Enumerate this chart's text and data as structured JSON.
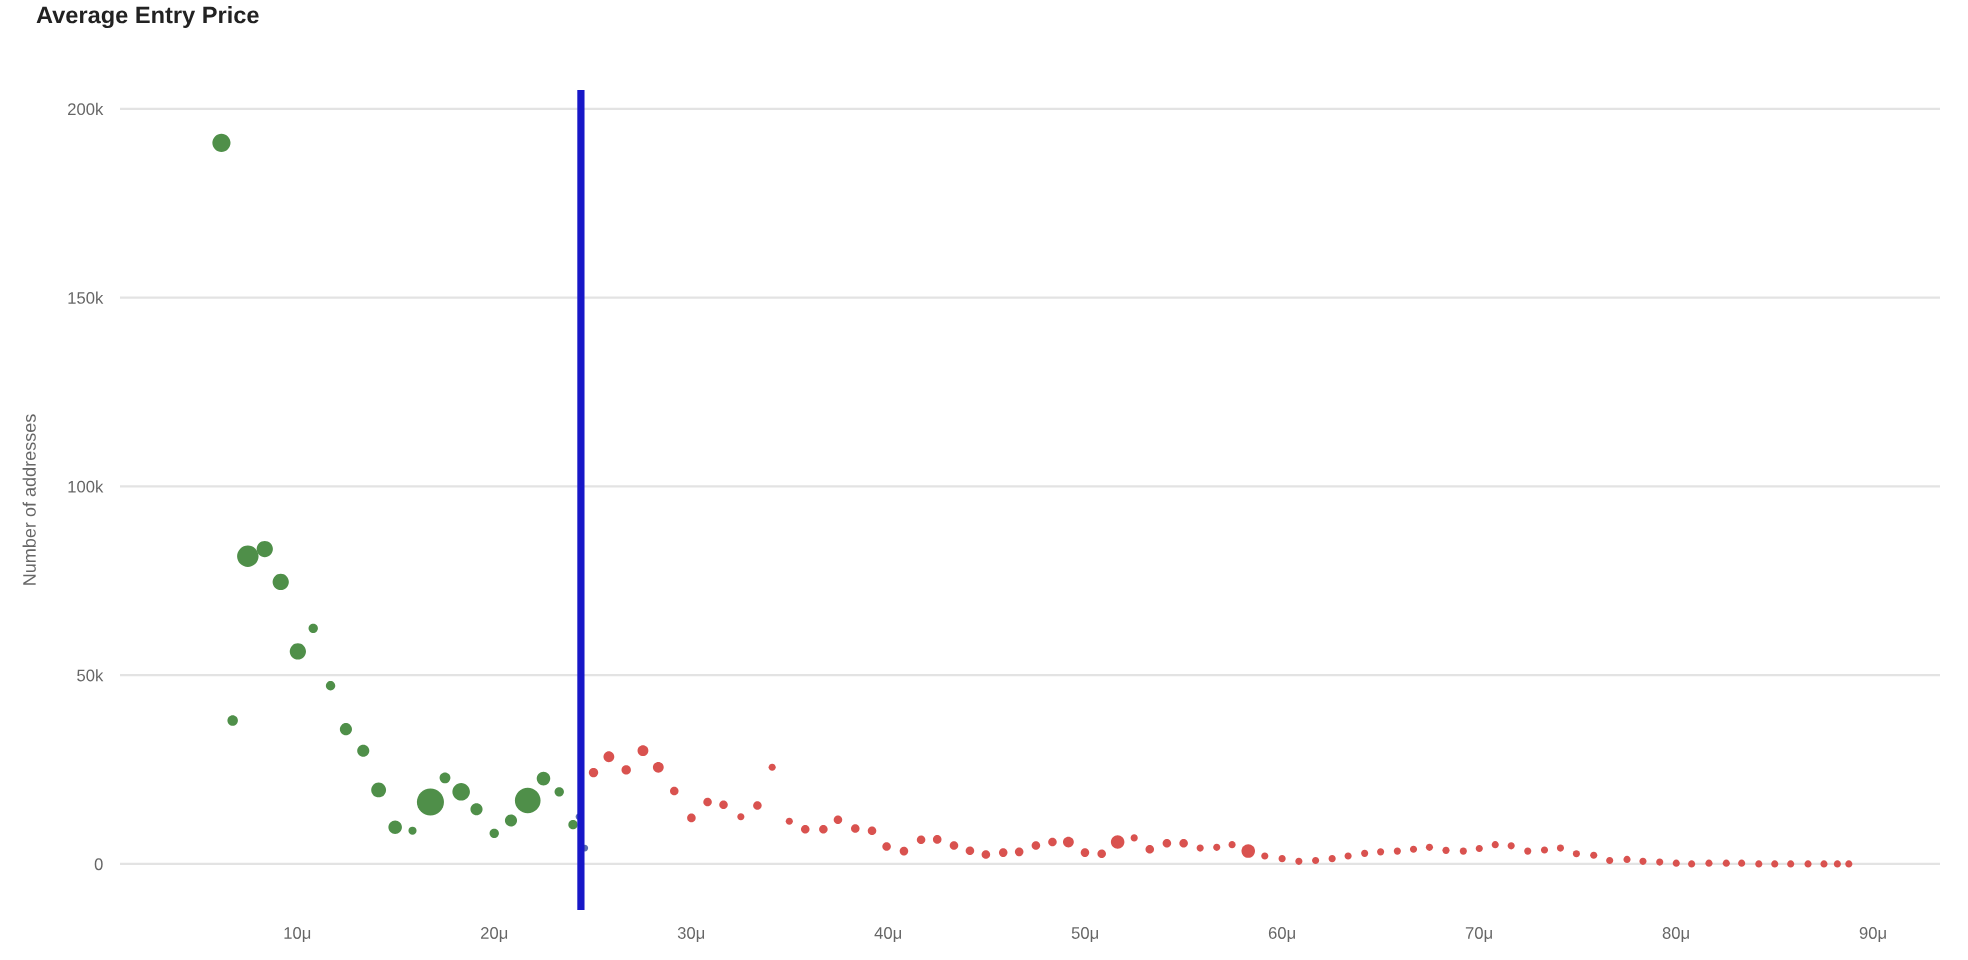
{
  "chart_data": {
    "type": "bubble",
    "title": "Average Entry Price",
    "ylabel": "Number of addresses",
    "series": [
      {
        "color": "#4f8f49",
        "x": [
          6.15,
          6.72,
          7.49,
          8.35,
          9.16,
          10.03,
          10.81,
          11.69,
          12.47,
          13.35,
          14.13,
          14.97,
          15.85,
          16.76,
          17.5,
          18.32,
          19.1,
          20.0,
          20.85,
          21.7,
          22.5,
          23.3,
          24.0
        ],
        "values": [
          191000,
          38000,
          81500,
          83400,
          74700,
          56300,
          62400,
          47200,
          35700,
          30000,
          19600,
          9700,
          8800,
          16400,
          22800,
          19100,
          14500,
          8100,
          11500,
          16800,
          22600,
          19100,
          10400
        ],
        "sizes": [
          0.45,
          0.15,
          0.63,
          0.36,
          0.36,
          0.36,
          0.12,
          0.12,
          0.2,
          0.2,
          0.3,
          0.25,
          0.09,
          1,
          0.16,
          0.42,
          0.2,
          0.12,
          0.2,
          0.9,
          0.25,
          0.12,
          0.12
        ]
      },
      {
        "color": "#5b6fae",
        "x": [
          24.3,
          24.6
        ],
        "values": [
          12500,
          4200
        ],
        "sizes": [
          0.06,
          0.06
        ]
      },
      {
        "color": "#d9524f",
        "x": [
          25.04,
          25.82,
          26.7,
          27.55,
          28.33,
          29.14,
          30.01,
          30.83,
          31.64,
          32.52,
          33.36,
          34.11,
          34.98,
          35.79,
          36.71,
          37.45,
          38.33,
          39.18,
          39.92,
          40.8,
          41.67,
          42.49,
          43.34,
          44.15,
          44.96,
          45.84,
          46.65,
          47.5,
          48.34,
          49.15,
          49.99,
          50.84,
          51.65,
          52.49,
          53.28,
          54.15,
          55.0,
          55.84,
          56.68,
          57.46,
          58.28,
          59.12,
          60.0,
          60.85,
          61.7,
          62.54,
          63.35,
          64.19,
          65.0,
          65.85,
          66.67,
          67.48,
          68.32,
          69.2,
          70.01,
          70.82,
          71.63,
          72.47,
          73.32,
          74.13,
          74.94,
          75.82,
          76.63,
          77.51,
          78.32,
          79.17,
          80.01,
          80.79,
          81.67,
          82.55,
          83.33,
          84.2,
          85.01,
          85.82,
          86.7,
          87.51,
          88.19,
          88.77
        ],
        "values": [
          24200,
          28400,
          24900,
          30000,
          25600,
          19300,
          12200,
          16400,
          15700,
          12500,
          15500,
          25600,
          11300,
          9200,
          9200,
          11700,
          9400,
          8800,
          4600,
          3400,
          6400,
          6500,
          4900,
          3500,
          2500,
          3000,
          3200,
          4900,
          5800,
          5800,
          3000,
          2700,
          5800,
          6900,
          3900,
          5500,
          5500,
          4200,
          4400,
          5100,
          3400,
          2100,
          1400,
          700,
          900,
          1400,
          2100,
          2800,
          3200,
          3400,
          3900,
          4400,
          3600,
          3400,
          4100,
          5100,
          4800,
          3400,
          3700,
          4200,
          2700,
          2300,
          900,
          1200,
          700,
          500,
          200,
          0,
          200,
          200,
          200,
          0,
          0,
          0,
          0,
          0,
          0,
          0
        ],
        "sizes": [
          0.12,
          0.16,
          0.12,
          0.16,
          0.16,
          0.1,
          0.1,
          0.1,
          0.1,
          0.07,
          0.1,
          0.07,
          0.07,
          0.1,
          0.1,
          0.1,
          0.1,
          0.1,
          0.1,
          0.1,
          0.1,
          0.1,
          0.1,
          0.1,
          0.1,
          0.1,
          0.1,
          0.1,
          0.1,
          0.16,
          0.1,
          0.1,
          0.25,
          0.07,
          0.1,
          0.1,
          0.1,
          0.07,
          0.07,
          0.07,
          0.25,
          0.07,
          0.07,
          0.07,
          0.07,
          0.07,
          0.07,
          0.07,
          0.07,
          0.07,
          0.07,
          0.07,
          0.07,
          0.07,
          0.07,
          0.07,
          0.07,
          0.07,
          0.07,
          0.07,
          0.07,
          0.07,
          0.07,
          0.07,
          0.07,
          0.07,
          0.07,
          0.07,
          0.07,
          0.07,
          0.07,
          0.07,
          0.07,
          0.07,
          0.07,
          0.07,
          0.07,
          0.07
        ]
      }
    ],
    "xlim": [
      1,
      93.4
    ],
    "xticks": [
      {
        "value": 10,
        "label": "10μ"
      },
      {
        "value": 20,
        "label": "20μ"
      },
      {
        "value": 30,
        "label": "30μ"
      },
      {
        "value": 40,
        "label": "40μ"
      },
      {
        "value": 50,
        "label": "50μ"
      },
      {
        "value": 60,
        "label": "60μ"
      },
      {
        "value": 70,
        "label": "70μ"
      },
      {
        "value": 80,
        "label": "80μ"
      },
      {
        "value": 90,
        "label": "90μ"
      }
    ],
    "ylim": [
      -12200,
      205000
    ],
    "yticks": [
      0,
      {
        "value": 50000,
        "label": "50k"
      },
      {
        "value": 100000,
        "label": "100k"
      },
      {
        "value": 150000,
        "label": "150k"
      },
      {
        "value": 200000,
        "label": "200k"
      }
    ],
    "ref_lines": [
      {
        "axis": "x",
        "value": 24.4,
        "color": "#1717c8",
        "line_style": "solid"
      }
    ],
    "grid": "y",
    "marker": "circle"
  }
}
